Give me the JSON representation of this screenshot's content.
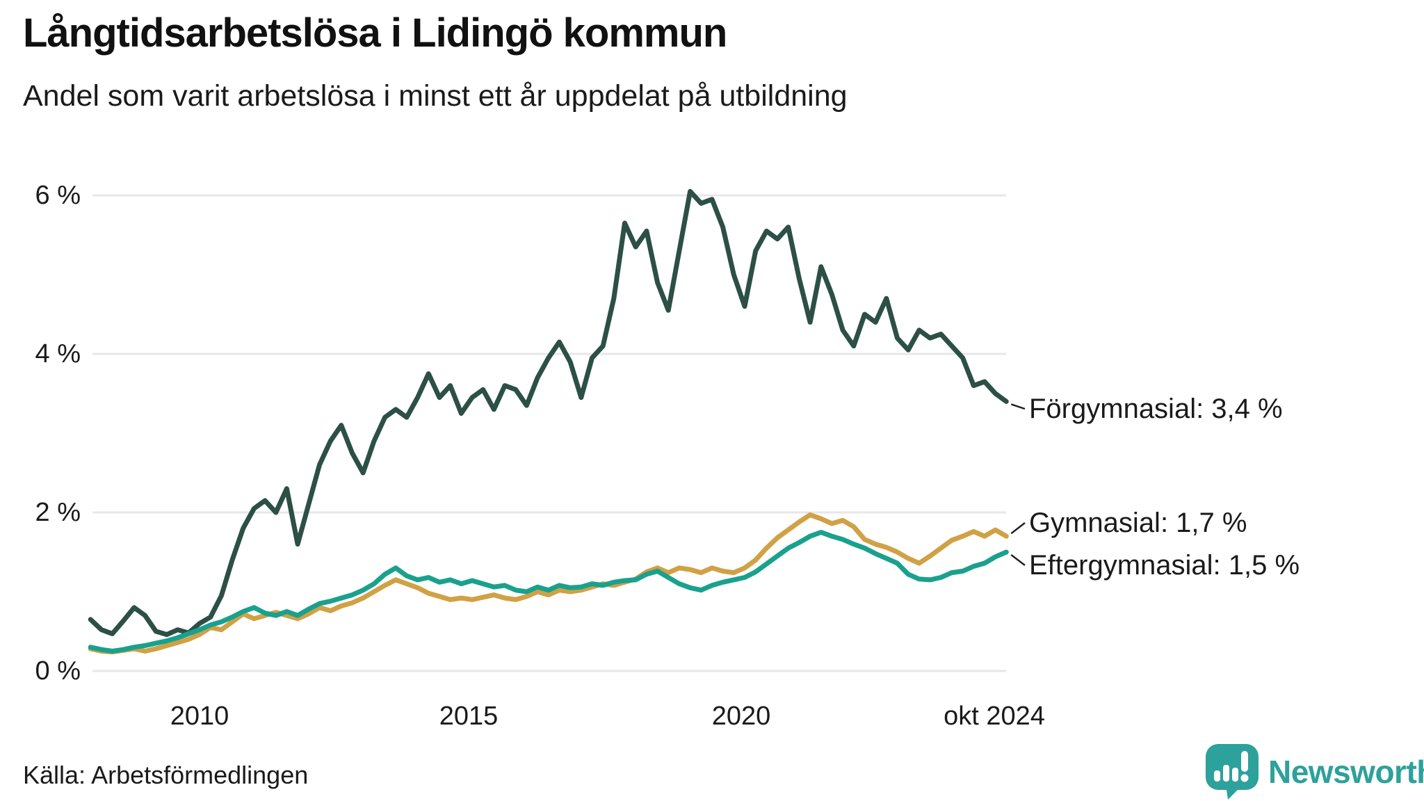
{
  "header": {
    "title": "Långtidsarbetslösa i Lidingö kommun",
    "subtitle": "Andel som varit arbetslösa i minst ett år uppdelat på utbildning"
  },
  "footer": {
    "source": "Källa: Arbetsförmedlingen",
    "logo_text": "Newsworthy"
  },
  "colors": {
    "forgymnasial": "#2c4f46",
    "gymnasial": "#d0a145",
    "eftergymnasial": "#19a18e",
    "gridline": "#e7e7eb",
    "connector": "#222222",
    "text": "#1a1a1a",
    "logo_teal": "#2da19b"
  },
  "chart_data": {
    "type": "line",
    "title": "Långtidsarbetslösa i Lidingö kommun",
    "subtitle": "Andel som varit arbetslösa i minst ett år uppdelat på utbildning",
    "unit": "%",
    "x_start": 2008.0,
    "x_step": 0.2,
    "x_end_label": "okt 2024",
    "ylim": [
      0,
      6.3
    ],
    "grid": "horizontal",
    "legend_position": "right-end-labels",
    "y_ticks": [
      {
        "label": "6 %",
        "value": 6
      },
      {
        "label": "4 %",
        "value": 4
      },
      {
        "label": "2 %",
        "value": 2
      },
      {
        "label": "0 %",
        "value": 0
      }
    ],
    "x_ticks": [
      {
        "label": "2010",
        "year": 2010
      },
      {
        "label": "2015",
        "year": 2015
      },
      {
        "label": "2020",
        "year": 2020
      },
      {
        "label": "okt 2024",
        "year": 2024.64
      }
    ],
    "series": [
      {
        "name": "Förgymnasial",
        "end_label": "Förgymnasial: 3,4 %",
        "end_value": "3,4 %",
        "color_key": "forgymnasial",
        "values": [
          0.65,
          0.52,
          0.47,
          0.63,
          0.8,
          0.7,
          0.5,
          0.46,
          0.52,
          0.48,
          0.6,
          0.68,
          0.95,
          1.4,
          1.8,
          2.05,
          2.15,
          2.0,
          2.3,
          1.6,
          2.1,
          2.6,
          2.9,
          3.1,
          2.75,
          2.5,
          2.9,
          3.2,
          3.3,
          3.2,
          3.45,
          3.75,
          3.45,
          3.6,
          3.25,
          3.45,
          3.55,
          3.3,
          3.6,
          3.55,
          3.35,
          3.7,
          3.95,
          4.15,
          3.9,
          3.45,
          3.95,
          4.1,
          4.7,
          5.65,
          5.35,
          5.55,
          4.9,
          4.55,
          5.3,
          6.05,
          5.9,
          5.95,
          5.6,
          5.0,
          4.6,
          5.3,
          5.55,
          5.45,
          5.6,
          4.95,
          4.4,
          5.1,
          4.75,
          4.3,
          4.1,
          4.5,
          4.4,
          4.7,
          4.2,
          4.05,
          4.3,
          4.2,
          4.25,
          4.1,
          3.95,
          3.6,
          3.65,
          3.5,
          3.4
        ]
      },
      {
        "name": "Gymnasial",
        "end_label": "Gymnasial: 1,7 %",
        "end_value": "1,7 %",
        "color_key": "gymnasial",
        "values": [
          0.28,
          0.25,
          0.24,
          0.26,
          0.28,
          0.25,
          0.28,
          0.32,
          0.36,
          0.4,
          0.46,
          0.55,
          0.52,
          0.62,
          0.72,
          0.66,
          0.7,
          0.74,
          0.7,
          0.66,
          0.72,
          0.8,
          0.76,
          0.82,
          0.86,
          0.92,
          1.0,
          1.08,
          1.15,
          1.1,
          1.05,
          0.98,
          0.94,
          0.9,
          0.92,
          0.9,
          0.93,
          0.96,
          0.92,
          0.9,
          0.94,
          1.0,
          0.96,
          1.02,
          1.0,
          1.02,
          1.06,
          1.1,
          1.08,
          1.12,
          1.16,
          1.25,
          1.3,
          1.24,
          1.3,
          1.28,
          1.24,
          1.3,
          1.26,
          1.24,
          1.3,
          1.4,
          1.55,
          1.68,
          1.78,
          1.88,
          1.97,
          1.92,
          1.86,
          1.9,
          1.82,
          1.66,
          1.6,
          1.56,
          1.5,
          1.42,
          1.36,
          1.45,
          1.55,
          1.65,
          1.7,
          1.76,
          1.7,
          1.78,
          1.7
        ]
      },
      {
        "name": "Eftergymnasial",
        "end_label": "Eftergymnasial: 1,5 %",
        "end_value": "1,5 %",
        "color_key": "eftergymnasial",
        "values": [
          0.3,
          0.27,
          0.25,
          0.27,
          0.3,
          0.32,
          0.35,
          0.38,
          0.42,
          0.47,
          0.52,
          0.58,
          0.62,
          0.68,
          0.75,
          0.8,
          0.73,
          0.7,
          0.75,
          0.7,
          0.78,
          0.85,
          0.88,
          0.92,
          0.96,
          1.02,
          1.1,
          1.22,
          1.3,
          1.2,
          1.15,
          1.18,
          1.12,
          1.15,
          1.1,
          1.14,
          1.1,
          1.06,
          1.08,
          1.02,
          1.0,
          1.06,
          1.02,
          1.08,
          1.05,
          1.06,
          1.1,
          1.08,
          1.12,
          1.14,
          1.15,
          1.22,
          1.26,
          1.18,
          1.1,
          1.05,
          1.02,
          1.08,
          1.12,
          1.15,
          1.18,
          1.25,
          1.35,
          1.45,
          1.55,
          1.62,
          1.7,
          1.75,
          1.7,
          1.66,
          1.6,
          1.55,
          1.48,
          1.42,
          1.36,
          1.22,
          1.16,
          1.15,
          1.18,
          1.24,
          1.26,
          1.32,
          1.36,
          1.44,
          1.5
        ]
      }
    ]
  }
}
